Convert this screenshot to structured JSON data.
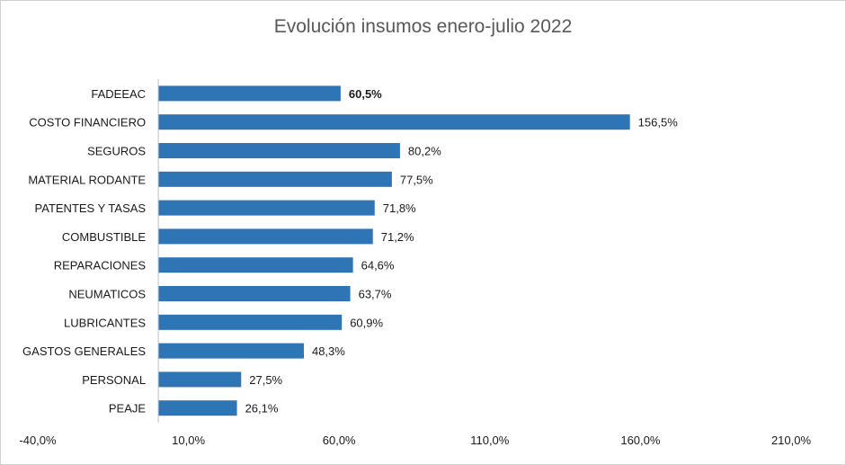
{
  "chart_data": {
    "type": "bar",
    "orientation": "horizontal",
    "title": "Evolución insumos enero-julio 2022",
    "categories": [
      "FADEEAC",
      "COSTO FINANCIERO",
      "SEGUROS",
      "MATERIAL RODANTE",
      "PATENTES Y TASAS",
      "COMBUSTIBLE",
      "REPARACIONES",
      "NEUMATICOS",
      "LUBRICANTES",
      "GASTOS GENERALES",
      "PERSONAL",
      "PEAJE"
    ],
    "values": [
      60.5,
      156.5,
      80.2,
      77.5,
      71.8,
      71.2,
      64.6,
      63.7,
      60.9,
      48.3,
      27.5,
      26.1
    ],
    "value_labels": [
      "60,5%",
      "156,5%",
      "80,2%",
      "77,5%",
      "71,8%",
      "71,2%",
      "64,6%",
      "63,7%",
      "60,9%",
      "48,3%",
      "27,5%",
      "26,1%"
    ],
    "highlight_index": 0,
    "xlim": [
      -40,
      210
    ],
    "xticks": [
      -40,
      10,
      60,
      110,
      160,
      210
    ],
    "xtick_labels": [
      "-40,0%",
      "10,0%",
      "60,0%",
      "110,0%",
      "160,0%",
      "210,0%"
    ],
    "bar_color": "#2E75B6",
    "grid": false,
    "legend": "none"
  }
}
